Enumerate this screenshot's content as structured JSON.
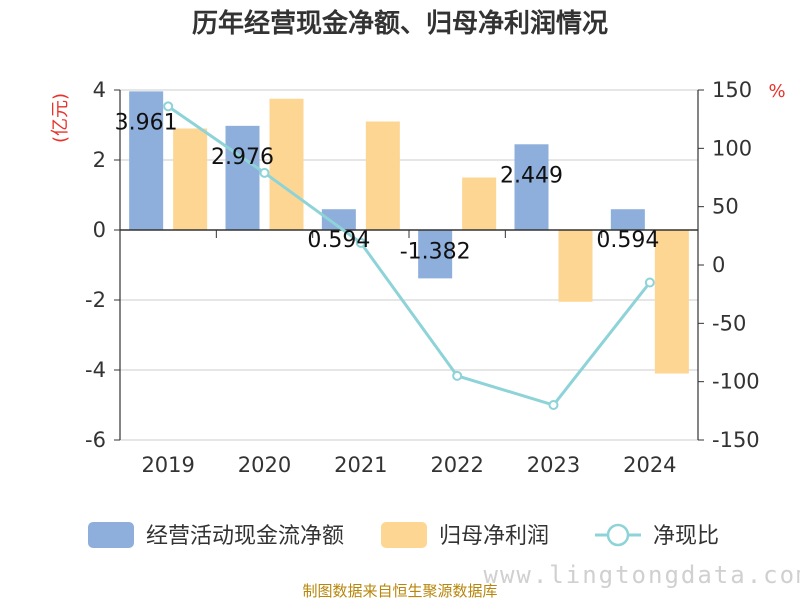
{
  "chart_data": {
    "type": "bar",
    "title": "历年经营现金净额、归母净利润情况",
    "categories": [
      "2019",
      "2020",
      "2021",
      "2022",
      "2023",
      "2024"
    ],
    "left_axis": {
      "unit": "(亿元)",
      "ylim": [
        -6,
        4
      ],
      "ticks": [
        4,
        2,
        0,
        -2,
        -4,
        -6
      ]
    },
    "right_axis": {
      "unit": "%",
      "ylim": [
        -150,
        150
      ],
      "ticks": [
        150,
        100,
        50,
        0,
        -50,
        -100,
        -150
      ]
    },
    "series": [
      {
        "name": "经营活动现金流净额",
        "type": "bar",
        "axis": "left",
        "color": "#8eaedb",
        "values": [
          3.961,
          2.976,
          0.594,
          -1.382,
          2.449,
          0.594
        ],
        "labels": [
          "3.961",
          "2.976",
          "0.594",
          "-1.382",
          "2.449",
          "0.594"
        ]
      },
      {
        "name": "归母净利润",
        "type": "bar",
        "axis": "left",
        "color": "#fdd693",
        "values": [
          2.9,
          3.75,
          3.1,
          1.5,
          -2.05,
          -4.1
        ]
      },
      {
        "name": "净现比",
        "type": "line",
        "axis": "right",
        "color": "#8dd3d8",
        "values": [
          136,
          79,
          19,
          -95,
          -120,
          -15
        ]
      }
    ],
    "grid": true,
    "legend_position": "bottom"
  },
  "source": "制图数据来自恒生聚源数据库",
  "watermark": "www.lingtongdata.com"
}
